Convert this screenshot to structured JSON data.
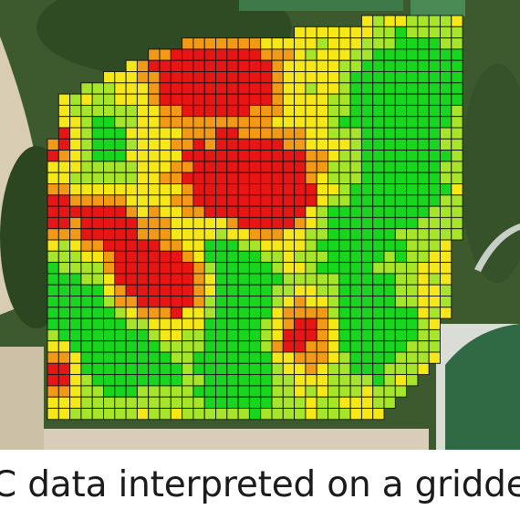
{
  "caption": "C data interpreted on a gridded",
  "colors": {
    "low": "#e81515",
    "mid_low": "#f29a16",
    "mid": "#f6e816",
    "mid_high": "#a6e52a",
    "high": "#18d51d",
    "grid_line": "#111111",
    "field_soil": "#d9cdb5",
    "trees": "#2e4a22",
    "pond_water": "#2f6a45"
  },
  "chart_data": {
    "type": "heatmap",
    "rows": 36,
    "cols": 37,
    "value_scale": {
      "min": 0,
      "max": 1
    },
    "low_hotspots": [
      {
        "row": 5,
        "col": 12,
        "radius": 2.2
      },
      {
        "row": 5,
        "col": 17,
        "radius": 2.0
      },
      {
        "row": 14,
        "col": 16,
        "radius": 3.0
      },
      {
        "row": 15,
        "col": 20,
        "radius": 2.5
      },
      {
        "row": 11,
        "col": 1,
        "radius": 1.6
      },
      {
        "row": 17,
        "col": 0,
        "radius": 1.5
      },
      {
        "row": 18,
        "col": 5,
        "radius": 1.6
      },
      {
        "row": 23,
        "col": 8,
        "radius": 2.6
      },
      {
        "row": 23,
        "col": 12,
        "radius": 2.0
      },
      {
        "row": 28,
        "col": 22,
        "radius": 2.2
      },
      {
        "row": 31,
        "col": 0,
        "radius": 1.4
      }
    ],
    "high_zones": [
      {
        "row": 11,
        "col": 3,
        "radius": 2.5
      },
      {
        "row": 8,
        "col": 30,
        "radius": 3.0
      },
      {
        "row": 5,
        "col": 33,
        "radius": 2.8
      },
      {
        "row": 21,
        "col": 14,
        "radius": 2.2
      },
      {
        "row": 24,
        "col": 17,
        "radius": 2.5
      },
      {
        "row": 25,
        "col": 2,
        "radius": 3.0
      },
      {
        "row": 30,
        "col": 6,
        "radius": 3.0
      },
      {
        "row": 31,
        "col": 17,
        "radius": 3.5
      },
      {
        "row": 28,
        "col": 28,
        "radius": 3.0
      },
      {
        "row": 19,
        "col": 27,
        "radius": 3.0
      },
      {
        "row": 14,
        "col": 32,
        "radius": 2.5
      }
    ]
  }
}
